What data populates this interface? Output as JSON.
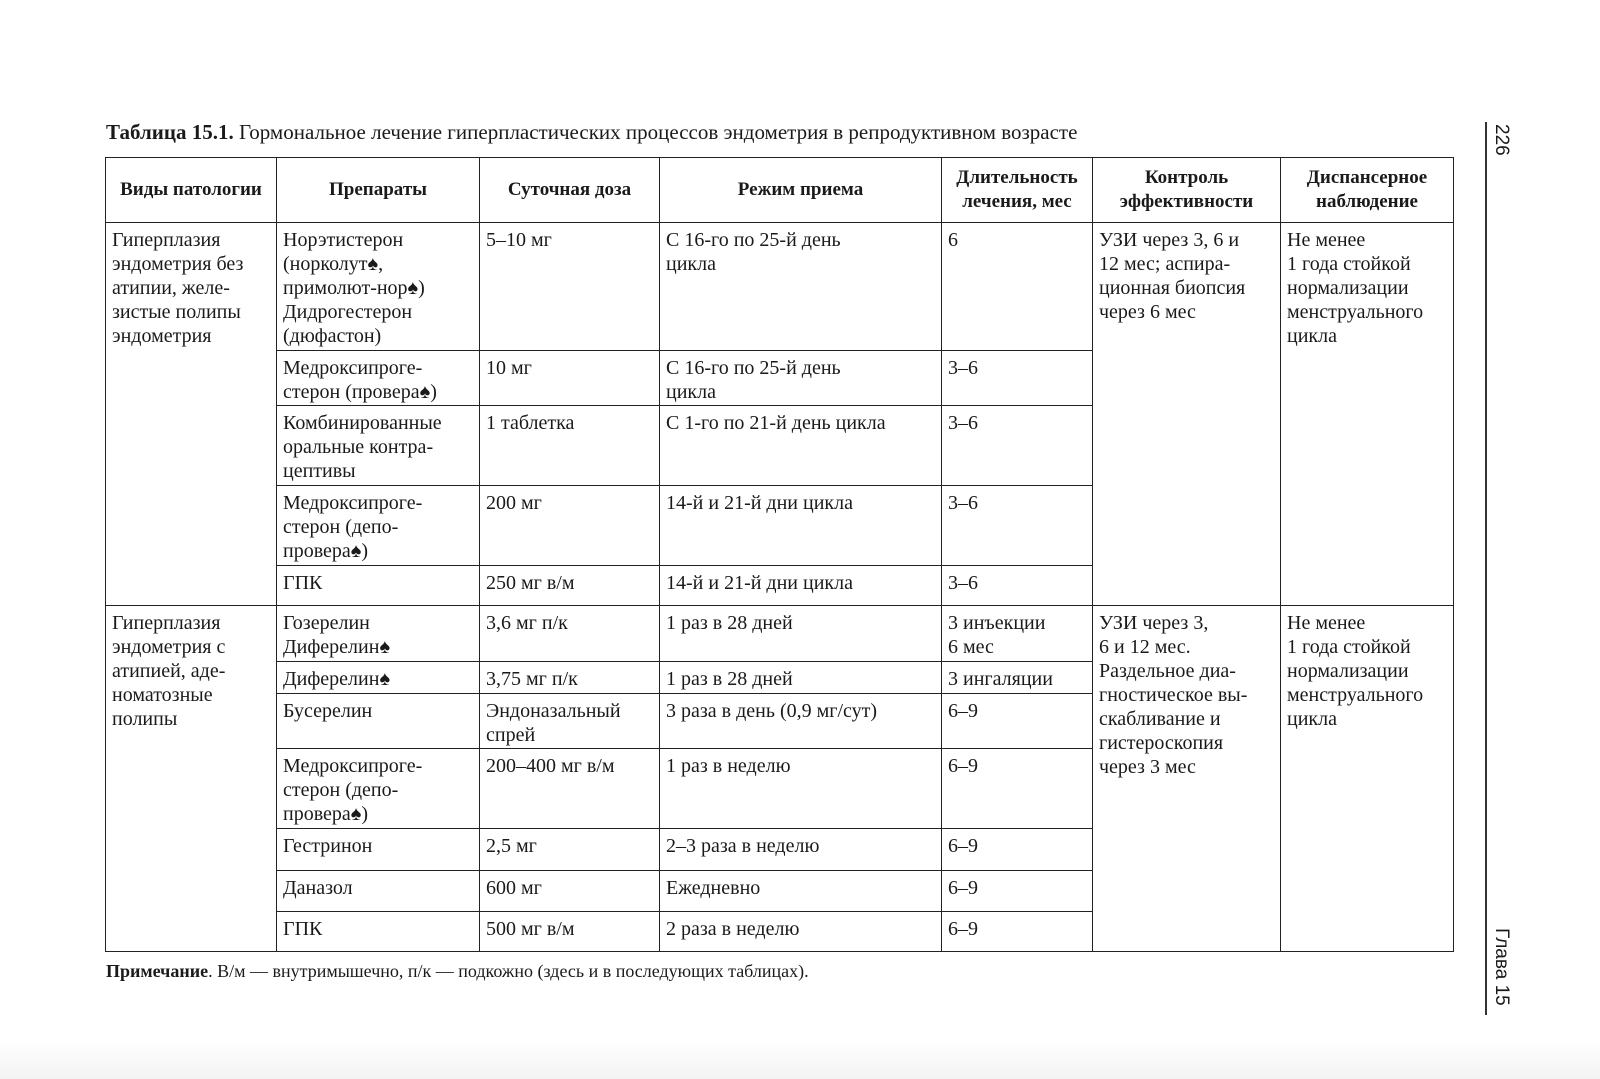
{
  "caption": {
    "label": "Таблица 15.1.",
    "text": " Гормональное лечение гиперпластических процессов эндометрия в репродуктивном возрасте"
  },
  "table": {
    "headers": [
      "Виды патологии",
      "Препараты",
      "Суточная доза",
      "Режим приема",
      "Длительность\nлечения, мес",
      "Контроль\nэффективности",
      "Диспансерное\nнаблюдение"
    ],
    "groups": [
      {
        "pathology": "Гиперплазия\nэндометрия без\nатипии, желе-\nзистые полипы\nэндометрия",
        "control": "УЗИ через 3, 6 и\n12 мес; аспира-\nционная биопсия\nчерез 6 мес",
        "followup": "Не менее\n1 года стойкой\nнормализации\nменструального\nцикла",
        "rows": [
          {
            "drug": "Норэтистерон\n(норколут♠,\nпримолют-нор♠)\nДидрогестерон\n(дюфастон)",
            "dose": "5–10 мг",
            "regimen": "С 16-го по 25-й день\nцикла",
            "duration": "6"
          },
          {
            "drug": "Медроксипроге-\nстерон (провера♠)",
            "dose": "10 мг",
            "regimen": "С 16-го по 25-й день\nцикла",
            "duration": "3–6"
          },
          {
            "drug": "Комбинированные\nоральные контра-\nцептивы",
            "dose": "1 таблетка",
            "regimen": "С 1-го по 21-й день цикла",
            "duration": "3–6"
          },
          {
            "drug": "Медроксипроге-\nстерон (депо-\nпровера♠)",
            "dose": "200 мг",
            "regimen": "14-й и 21-й дни цикла",
            "duration": "3–6"
          },
          {
            "drug": "ГПК",
            "dose": "250 мг в/м",
            "regimen": "14-й и 21-й дни цикла",
            "duration": "3–6"
          }
        ]
      },
      {
        "pathology": "Гиперплазия\nэндометрия с\nатипией, аде-\nноматозные\nполипы",
        "control": "УЗИ через 3,\n6 и 12 мес.\nРаздельное диа-\nгностическое вы-\nскабливание и\nгистероскопия\nчерез 3 мес",
        "followup": "Не менее\n1 года стойкой\nнормализации\nменструального\nцикла",
        "rows": [
          {
            "drug": "Гозерелин\nДиферелин♠",
            "dose": "3,6 мг п/к",
            "regimen": "1 раз в 28 дней",
            "duration": "3 инъекции\n6 мес"
          },
          {
            "drug": "Диферелин♠",
            "dose": "3,75 мг п/к",
            "regimen": "1 раз в 28 дней",
            "duration": "3 ингаляции"
          },
          {
            "drug": "Бусерелин",
            "dose": "Эндоназальный\nспрей",
            "regimen": "3 раза в день (0,9 мг/сут)",
            "duration": "6–9"
          },
          {
            "drug": "Медроксипроге-\nстерон (депо-\nпровера♠)",
            "dose": "200–400 мг в/м",
            "regimen": "1 раз в неделю",
            "duration": "6–9"
          },
          {
            "drug": "Гестринон",
            "dose": "2,5 мг",
            "regimen": "2–3 раза в неделю",
            "duration": "6–9"
          },
          {
            "drug": "Даназол",
            "dose": "600 мг",
            "regimen": "Ежедневно",
            "duration": "6–9"
          },
          {
            "drug": "ГПК",
            "dose": "500 мг в/м",
            "regimen": "2 раза в неделю",
            "duration": "6–9"
          }
        ]
      }
    ]
  },
  "note": {
    "label": "Примечание",
    "text": ". В/м — внутримышечно, п/к — подкожно (здесь и в последующих таблицах)."
  },
  "margin": {
    "page_number": "226",
    "chapter": "Глава 15"
  }
}
